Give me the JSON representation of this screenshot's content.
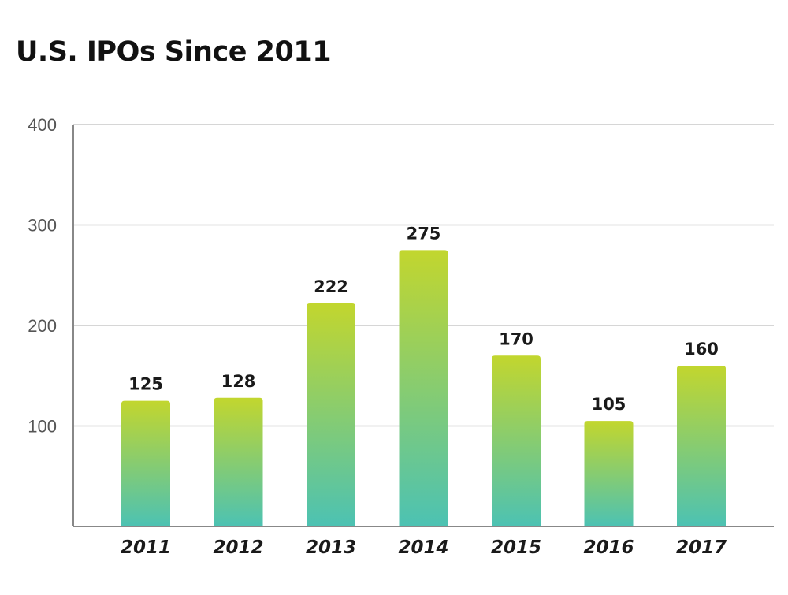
{
  "chart_data": {
    "type": "bar",
    "title": "U.S. IPOs Since 2011",
    "xlabel": "",
    "ylabel": "",
    "categories": [
      "2011",
      "2012",
      "2013",
      "2014",
      "2015",
      "2016",
      "2017"
    ],
    "values": [
      125,
      128,
      222,
      275,
      170,
      105,
      160
    ],
    "ylim": [
      0,
      400
    ],
    "yticks": [
      100,
      200,
      300,
      400
    ],
    "grid": true,
    "legend": "none",
    "bar_gradient": {
      "top": "#c2d62e",
      "bottom": "#4cc2b3"
    },
    "colors": {
      "grid": "#c8c8c8",
      "axis": "#888888",
      "tick_text": "#555555",
      "label_text": "#1a1a1a"
    }
  }
}
